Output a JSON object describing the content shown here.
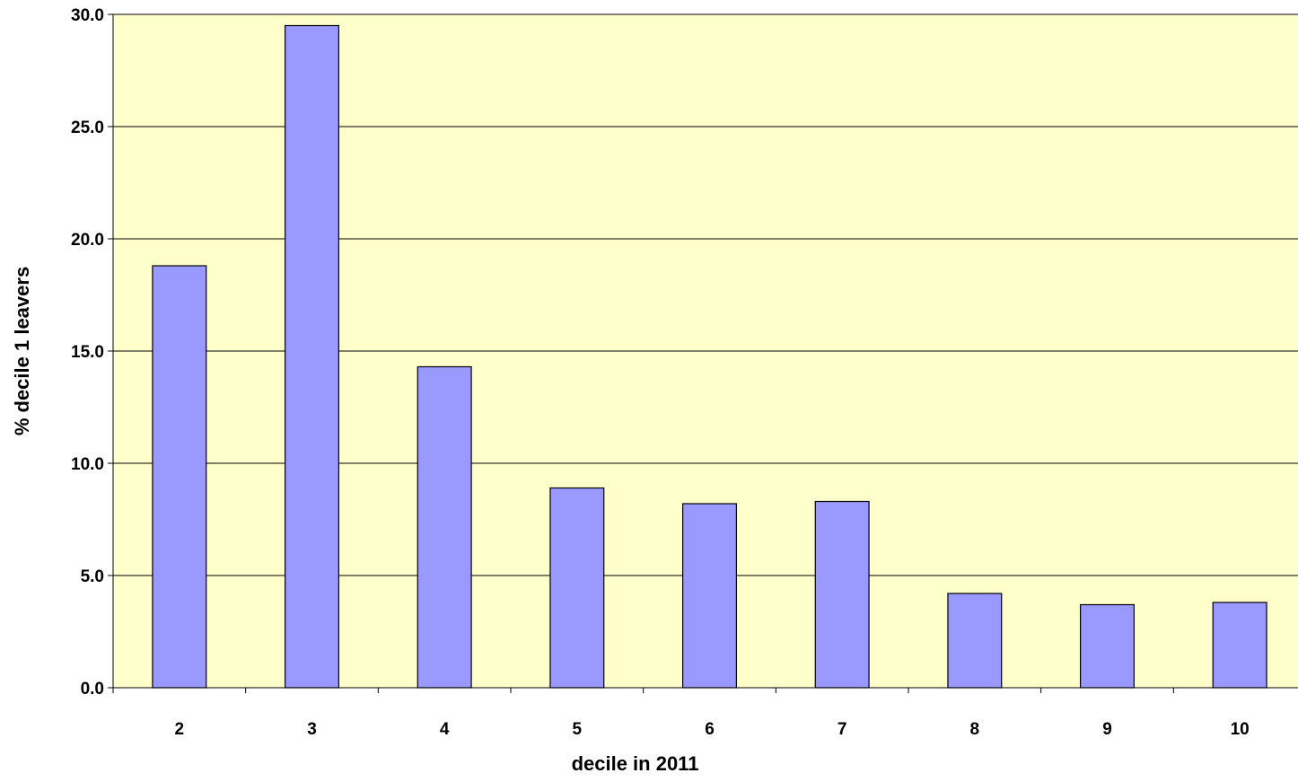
{
  "chart_data": {
    "type": "bar",
    "title": "",
    "xlabel": "decile in 2011",
    "ylabel": "% decile 1 leavers",
    "categories": [
      "2",
      "3",
      "4",
      "5",
      "6",
      "7",
      "8",
      "9",
      "10"
    ],
    "values": [
      18.8,
      29.5,
      14.3,
      8.9,
      8.2,
      8.3,
      4.2,
      3.7,
      3.8
    ],
    "ylim": [
      0,
      30
    ],
    "yticks": [
      0,
      5,
      10,
      15,
      20,
      25,
      30
    ],
    "ytick_labels": [
      "0.0",
      "5.0",
      "10.0",
      "15.0",
      "20.0",
      "25.0",
      "30.0"
    ],
    "grid": "horizontal",
    "legend": "none",
    "colors": {
      "plot_background": "#ffffcc",
      "bar_fill": "#9999ff",
      "bar_stroke": "#000000",
      "grid": "#000000"
    }
  }
}
